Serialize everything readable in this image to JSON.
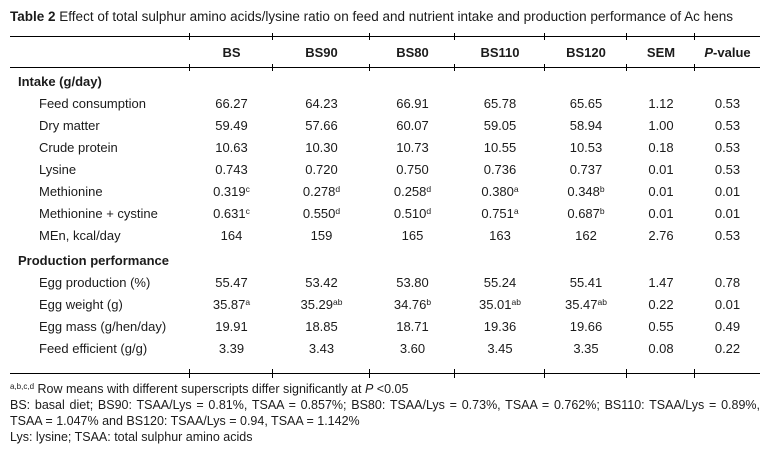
{
  "title": {
    "label": "Table 2",
    "text": "Effect of total sulphur amino acids/lysine ratio on feed and nutrient intake and production performance of Ac hens"
  },
  "table": {
    "columns": {
      "label_col": "",
      "names": [
        "BS",
        "BS90",
        "BS80",
        "BS110",
        "BS120",
        "SEM"
      ],
      "p_value": {
        "italic": "P",
        "rest": "-value"
      }
    },
    "sections": [
      {
        "title": "Intake (g/day)",
        "rows": [
          {
            "label": "Feed consumption",
            "cells": [
              "66.27",
              "64.23",
              "66.91",
              "65.78",
              "65.65",
              "1.12",
              "0.53"
            ]
          },
          {
            "label": "Dry matter",
            "cells": [
              "59.49",
              "57.66",
              "60.07",
              "59.05",
              "58.94",
              "1.00",
              "0.53"
            ]
          },
          {
            "label": "Crude protein",
            "cells": [
              "10.63",
              "10.30",
              "10.73",
              "10.55",
              "10.53",
              "0.18",
              "0.53"
            ]
          },
          {
            "label": "Lysine",
            "cells": [
              "0.743",
              "0.720",
              "0.750",
              "0.736",
              "0.737",
              "0.01",
              "0.53"
            ]
          },
          {
            "label": "Methionine",
            "cells": [
              {
                "v": "0.319",
                "sup": "c"
              },
              {
                "v": "0.278",
                "sup": "d"
              },
              {
                "v": "0.258",
                "sup": "d"
              },
              {
                "v": "0.380",
                "sup": "a"
              },
              {
                "v": "0.348",
                "sup": "b"
              },
              "0.01",
              "0.01"
            ]
          },
          {
            "label": "Methionine + cystine",
            "cells": [
              {
                "v": "0.631",
                "sup": "c"
              },
              {
                "v": "0.550",
                "sup": "d"
              },
              {
                "v": "0.510",
                "sup": "d"
              },
              {
                "v": "0.751",
                "sup": "a"
              },
              {
                "v": "0.687",
                "sup": "b"
              },
              "0.01",
              "0.01"
            ]
          },
          {
            "label": "MEn, kcal/day",
            "cells": [
              "164",
              "159",
              "165",
              "163",
              "162",
              "2.76",
              "0.53"
            ]
          }
        ]
      },
      {
        "title": "Production performance",
        "rows": [
          {
            "label": "Egg production (%)",
            "cells": [
              "55.47",
              "53.42",
              "53.80",
              "55.24",
              "55.41",
              "1.47",
              "0.78"
            ]
          },
          {
            "label": "Egg weight (g)",
            "cells": [
              {
                "v": "35.87",
                "sup": "a"
              },
              {
                "v": "35.29",
                "sup": "ab"
              },
              {
                "v": "34.76",
                "sup": "b"
              },
              {
                "v": "35.01",
                "sup": "ab"
              },
              {
                "v": "35.47",
                "sup": "ab"
              },
              "0.22",
              "0.01"
            ]
          },
          {
            "label": "Egg mass (g/hen/day)",
            "cells": [
              "19.91",
              "18.85",
              "18.71",
              "19.36",
              "19.66",
              "0.55",
              "0.49"
            ]
          },
          {
            "label": "Feed efficient (g/g)",
            "cells": [
              "3.39",
              "3.43",
              "3.60",
              "3.45",
              "3.35",
              "0.08",
              "0.22"
            ]
          }
        ]
      }
    ]
  },
  "footnotes": {
    "sig_sup": "a,b,c,d",
    "sig_pre": " Row means with different superscripts differ significantly at ",
    "sig_p": "P",
    "sig_post": " <0.05",
    "diets": "BS: basal diet; BS90: TSAA/Lys = 0.81%, TSAA = 0.857%; BS80: TSAA/Lys = 0.73%, TSAA = 0.762%; BS110: TSAA/Lys = 0.89%, TSAA = 1.047% and BS120: TSAA/Lys = 0.94, TSAA = 1.142%",
    "abbrev": "Lys: lysine; TSAA: total sulphur amino acids"
  }
}
